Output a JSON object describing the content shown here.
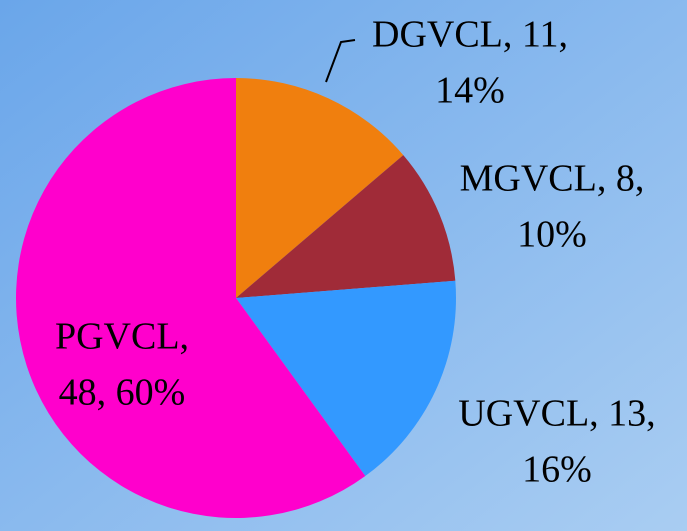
{
  "chart_data": {
    "type": "pie",
    "values": [
      11,
      8,
      13,
      48
    ],
    "value_labels": [
      [
        "DGVCL, 11,",
        "14%"
      ],
      [
        "MGVCL, 8,",
        "10%"
      ],
      [
        "UGVCL, 13,",
        "16%"
      ],
      [
        "PGVCL,",
        "48, 60%"
      ]
    ],
    "colors": [
      "#f07f0e",
      "#a02b38",
      "#3399ff",
      "#ff00cc"
    ]
  }
}
